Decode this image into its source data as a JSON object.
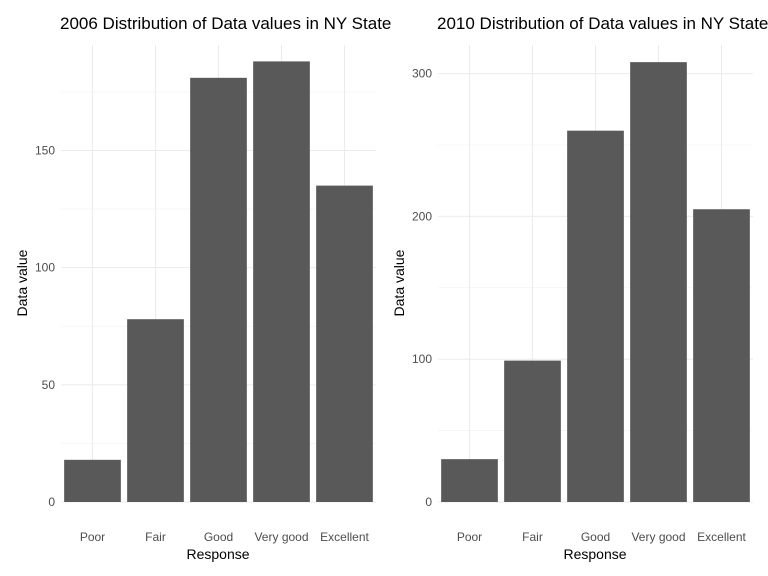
{
  "chart_data": [
    {
      "type": "bar",
      "title": "2006 Distribution of Data values in NY State",
      "xlabel": "Response",
      "ylabel": "Data value",
      "categories": [
        "Poor",
        "Fair",
        "Good",
        "Very good",
        "Excellent"
      ],
      "values": [
        18,
        78,
        181,
        188,
        135
      ],
      "ylim": [
        0,
        195
      ],
      "yticks": [
        0,
        50,
        100,
        150
      ],
      "bar_color": "#595959",
      "grid": true
    },
    {
      "type": "bar",
      "title": "2010 Distribution of Data values in NY State",
      "xlabel": "Response",
      "ylabel": "Data value",
      "categories": [
        "Poor",
        "Fair",
        "Good",
        "Very good",
        "Excellent"
      ],
      "values": [
        30,
        99,
        260,
        308,
        205
      ],
      "ylim": [
        0,
        320
      ],
      "yticks": [
        0,
        100,
        200,
        300
      ],
      "bar_color": "#595959",
      "grid": true
    }
  ]
}
